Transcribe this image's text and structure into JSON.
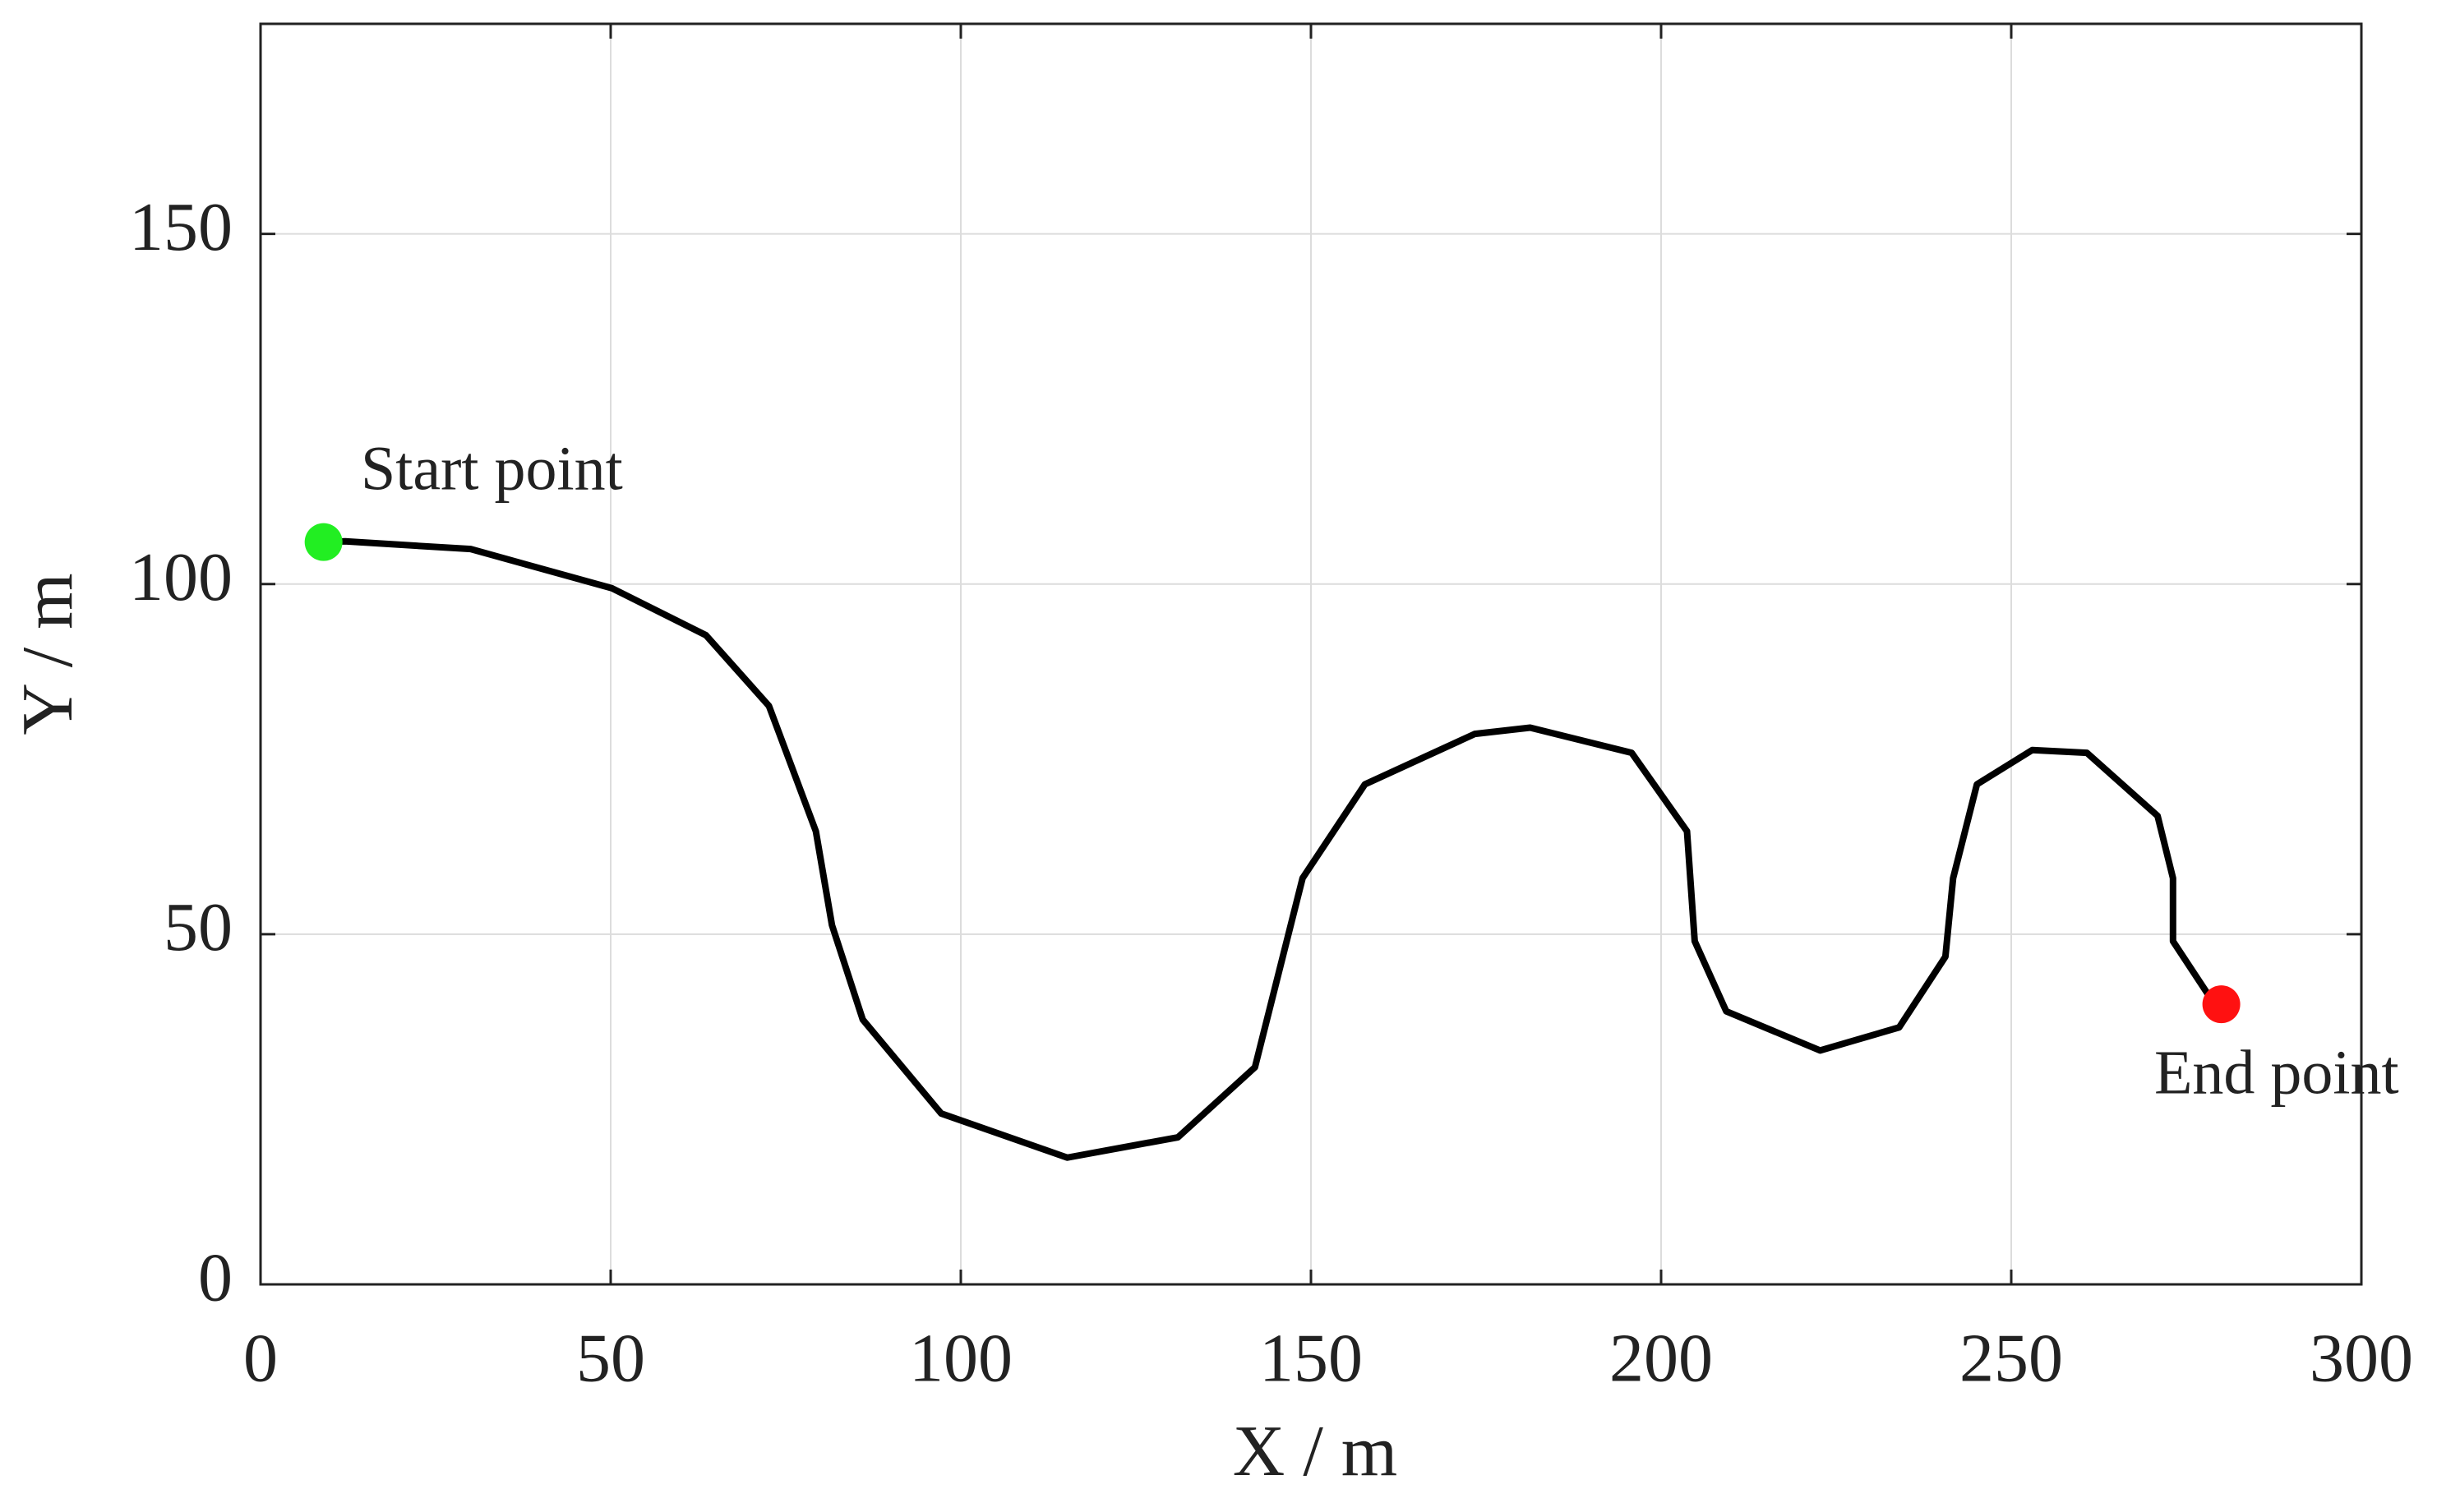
{
  "chart_data": {
    "type": "line",
    "xlabel": "X / m",
    "ylabel": "Y / m",
    "x": [
      9,
      12.1,
      30,
      50.2,
      63.6,
      72.6,
      79.3,
      81.6,
      86,
      97.2,
      115.2,
      131,
      142,
      145.4,
      148.8,
      157.7,
      173.4,
      181.3,
      195.8,
      203.7,
      204.8,
      209.3,
      222.7,
      234,
      240.6,
      241.7,
      245.1,
      253,
      260.8,
      270.9,
      273.1,
      273.1,
      278.7,
      280
    ],
    "values": [
      106,
      106.1,
      105,
      99.4,
      92.7,
      82.6,
      64.7,
      51.3,
      37.8,
      24.4,
      18.1,
      21,
      31,
      44.5,
      58,
      71.4,
      78.6,
      79.5,
      75.9,
      64.7,
      49,
      39,
      33.4,
      36.7,
      46.8,
      58,
      71.4,
      76.3,
      75.9,
      66.9,
      58,
      49,
      40.5,
      40
    ],
    "color": "#000000",
    "annotations": [
      {
        "text": "Start point",
        "x": 9,
        "y": 106,
        "color": "#22ee22"
      },
      {
        "text": "End point",
        "x": 280,
        "y": 40,
        "color": "#ff1111"
      }
    ],
    "xlim": [
      0,
      300
    ],
    "ylim": [
      0,
      180
    ],
    "xticks": [
      0,
      50,
      100,
      150,
      200,
      250,
      300
    ],
    "yticks": [
      0,
      50,
      100,
      150
    ],
    "grid": true
  }
}
